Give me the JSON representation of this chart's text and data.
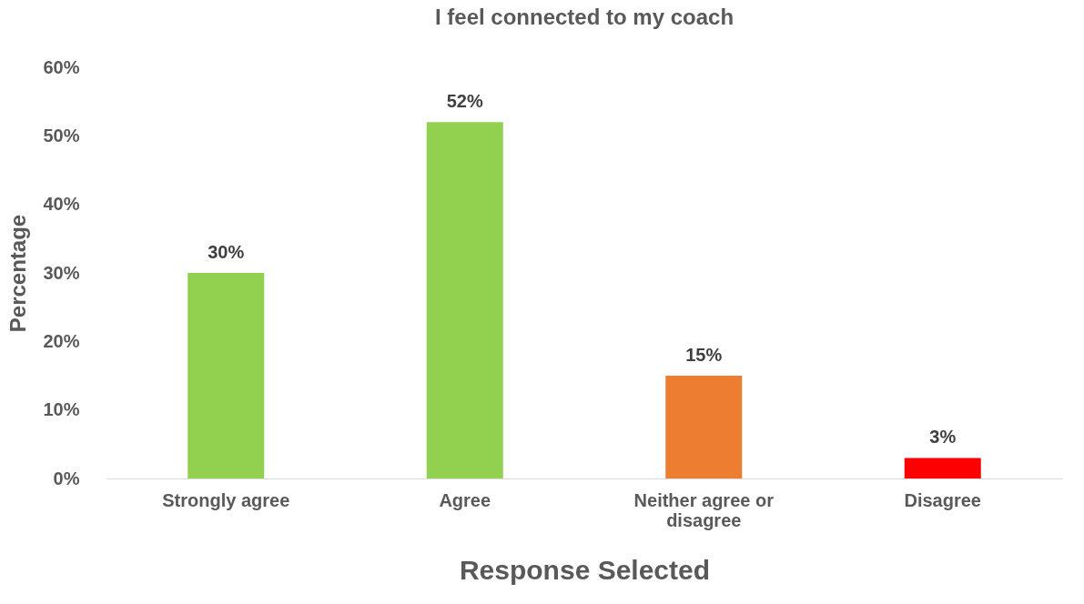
{
  "chart_data": {
    "type": "bar",
    "title": "I feel connected to my coach",
    "xlabel": "Response Selected",
    "ylabel": "Percentage",
    "categories": [
      "Strongly agree",
      "Agree",
      "Neither agree or disagree",
      "Disagree"
    ],
    "values": [
      30,
      52,
      15,
      3
    ],
    "colors": [
      "#92d050",
      "#92d050",
      "#ed7d31",
      "#ff0000"
    ],
    "value_labels": [
      "30%",
      "52%",
      "15%",
      "3%"
    ],
    "ylim": [
      0,
      60
    ],
    "yticks": [
      {
        "value": 0,
        "label": "0%"
      },
      {
        "value": 10,
        "label": "10%"
      },
      {
        "value": 20,
        "label": "20%"
      },
      {
        "value": 30,
        "label": "30%"
      },
      {
        "value": 40,
        "label": "40%"
      },
      {
        "value": 50,
        "label": "50%"
      },
      {
        "value": 60,
        "label": "60%"
      }
    ],
    "grid": false
  }
}
